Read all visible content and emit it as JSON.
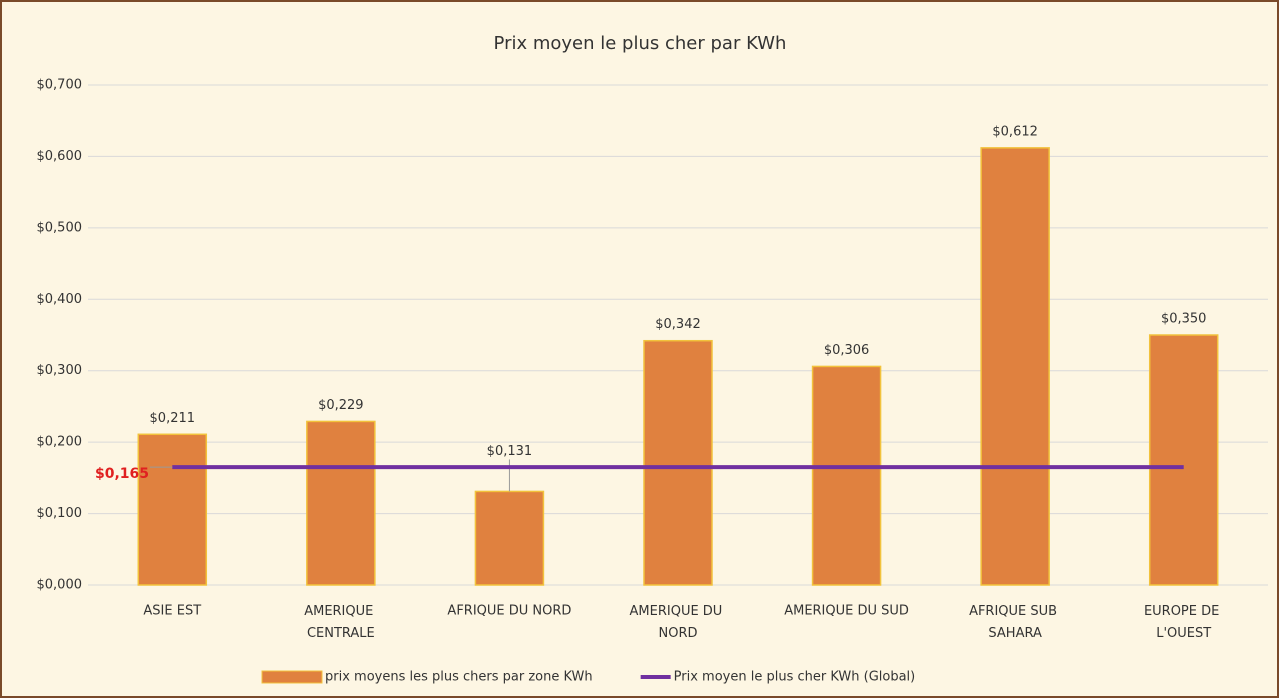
{
  "chart_data": {
    "type": "bar",
    "title": "Prix moyen le plus cher par KWh",
    "categories": [
      "ASIE EST",
      "AMERIQUE CENTRALE",
      "AFRIQUE DU NORD",
      "AMERIQUE DU NORD",
      "AMERIQUE DU SUD",
      "AFRIQUE SUB SAHARA",
      "EUROPE DE L'OUEST"
    ],
    "series": [
      {
        "name": "prix moyens les plus chers par zone KWh",
        "type": "bar",
        "color": "#e0813f",
        "values": [
          0.211,
          0.229,
          0.131,
          0.342,
          0.306,
          0.612,
          0.35
        ],
        "value_labels": [
          "$0,211",
          "$0,229",
          "$0,131",
          "$0,342",
          "$0,306",
          "$0,612",
          "$0,350"
        ]
      },
      {
        "name": "Prix moyen le plus cher KWh (Global)",
        "type": "line",
        "color": "#7030a0",
        "values": [
          0.165,
          0.165,
          0.165,
          0.165,
          0.165,
          0.165,
          0.165
        ],
        "value_labels": [
          "$0,165",
          null,
          null,
          null,
          null,
          null,
          null
        ]
      }
    ],
    "ylim": [
      0,
      0.7
    ],
    "yticks": [
      {
        "value": 0,
        "label": "$0,000"
      },
      {
        "value": 0.1,
        "label": "$0,100"
      },
      {
        "value": 0.2,
        "label": "$0,200"
      },
      {
        "value": 0.3,
        "label": "$0,300"
      },
      {
        "value": 0.4,
        "label": "$0,400"
      },
      {
        "value": 0.5,
        "label": "$0,500"
      },
      {
        "value": 0.6,
        "label": "$0,600"
      },
      {
        "value": 0.7,
        "label": "$0,700"
      }
    ],
    "grid": true,
    "legend": "bottom"
  }
}
